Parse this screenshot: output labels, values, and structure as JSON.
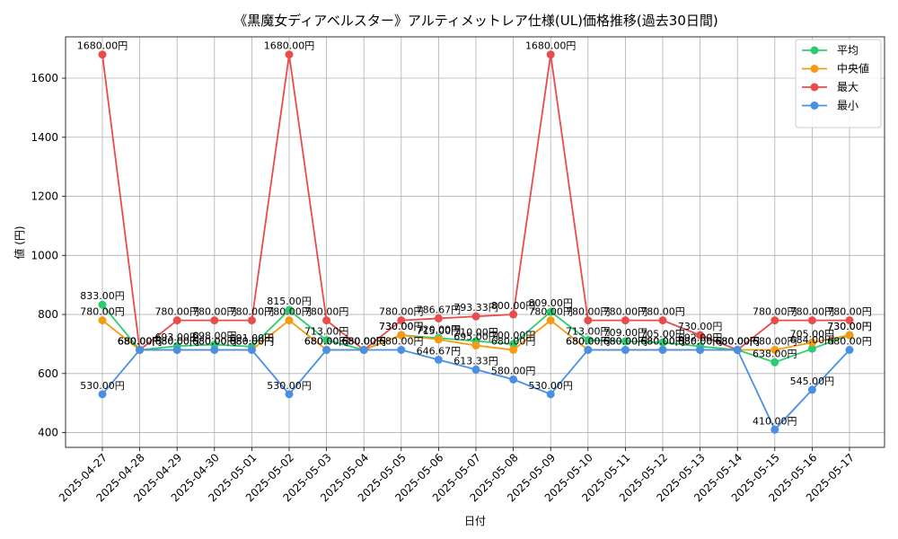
{
  "chart_data": {
    "type": "line",
    "title": "《黒魔女ディアベルスター》アルティメットレア仕様(UL)価格推移(過去30日間)",
    "xlabel": "日付",
    "ylabel": "値 (円)",
    "ylim": [
      350,
      1740
    ],
    "yticks": [
      400,
      600,
      800,
      1000,
      1200,
      1400,
      1600
    ],
    "grid": true,
    "legend_position": "top-right",
    "value_suffix": "円",
    "categories": [
      "2025-04-27",
      "2025-04-28",
      "2025-04-29",
      "2025-04-30",
      "2025-05-01",
      "2025-05-02",
      "2025-05-03",
      "2025-05-04",
      "2025-05-05",
      "2025-05-06",
      "2025-05-07",
      "2025-05-08",
      "2025-05-09",
      "2025-05-10",
      "2025-05-11",
      "2025-05-12",
      "2025-05-13",
      "2025-05-14",
      "2025-05-15",
      "2025-05-16",
      "2025-05-17"
    ],
    "series": [
      {
        "name": "平均",
        "color": "#2ecc71",
        "values": [
          833.0,
          680.0,
          693.0,
          698.0,
          691.0,
          815.0,
          713.0,
          680.0,
          730.0,
          720.0,
          710.0,
          700.0,
          809.0,
          713.0,
          709.0,
          705.0,
          692.0,
          680.0,
          638.0,
          684.0,
          730.0
        ]
      },
      {
        "name": "中央値",
        "color": "#f39c12",
        "values": [
          780.0,
          680.0,
          680.0,
          680.0,
          680.0,
          780.0,
          680.0,
          680.0,
          730.0,
          715.0,
          695.0,
          680.0,
          780.0,
          680.0,
          680.0,
          680.0,
          680.0,
          680.0,
          680.0,
          705.0,
          730.0
        ]
      },
      {
        "name": "最大",
        "color": "#e84c4c",
        "values": [
          1680.0,
          680.0,
          780.0,
          780.0,
          780.0,
          1680.0,
          780.0,
          680.0,
          780.0,
          786.67,
          793.33,
          800.0,
          1680.0,
          780.0,
          780.0,
          780.0,
          730.0,
          680.0,
          780.0,
          780.0,
          780.0
        ]
      },
      {
        "name": "最小",
        "color": "#4a90e2",
        "values": [
          530.0,
          680.0,
          680.0,
          680.0,
          680.0,
          530.0,
          680.0,
          680.0,
          680.0,
          646.67,
          613.33,
          580.0,
          530.0,
          680.0,
          680.0,
          680.0,
          680.0,
          680.0,
          410.0,
          545.0,
          680.0
        ]
      }
    ]
  }
}
